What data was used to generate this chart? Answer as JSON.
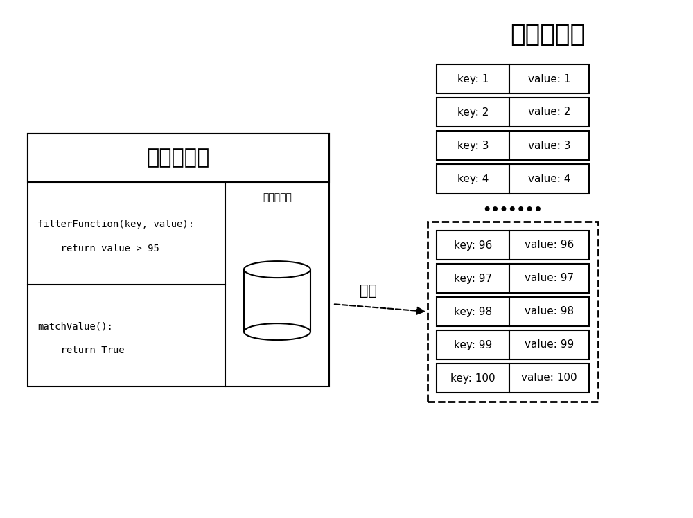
{
  "title_filter": "子集过滤器",
  "title_kv": "键値对数据",
  "filter_code_line1": "filterFunction(key, value):",
  "filter_code_line2": "    return value > 95",
  "filter_code_line3": "matchValue():",
  "filter_code_line4": "    return True",
  "storage_label": "数据项存储",
  "arrow_label": "存储",
  "top_rows": [
    [
      "key: 1",
      "value: 1"
    ],
    [
      "key: 2",
      "value: 2"
    ],
    [
      "key: 3",
      "value: 3"
    ],
    [
      "key: 4",
      "value: 4"
    ]
  ],
  "bottom_rows": [
    [
      "key: 96",
      "value: 96"
    ],
    [
      "key: 97",
      "value: 97"
    ],
    [
      "key: 98",
      "value: 98"
    ],
    [
      "key: 99",
      "value: 99"
    ],
    [
      "key: 100",
      "value: 100"
    ]
  ],
  "dots": "•••••••",
  "bg_color": "#ffffff",
  "box_color": "#000000",
  "text_color": "#000000"
}
